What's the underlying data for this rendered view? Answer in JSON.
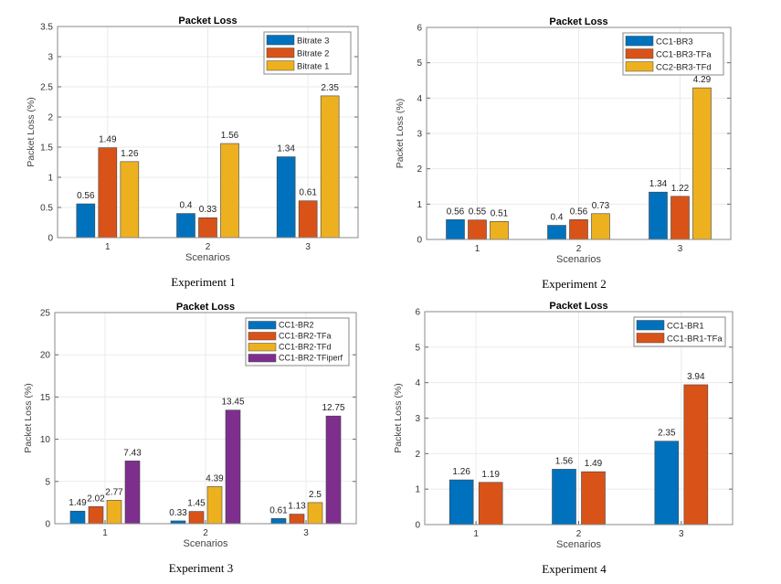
{
  "colors": [
    "#0072BD",
    "#D95319",
    "#EDB120",
    "#7E2F8E"
  ],
  "chart_data": [
    {
      "type": "bar",
      "title": "Packet Loss",
      "caption": "Experiment 1",
      "xlabel": "Scenarios",
      "ylabel": "Packet Loss (%)",
      "categories": [
        "1",
        "2",
        "3"
      ],
      "ylim": [
        0,
        3.5
      ],
      "yticks": [
        0,
        0.5,
        1,
        1.5,
        2,
        2.5,
        3,
        3.5
      ],
      "grid": true,
      "legend_position": "top-right",
      "series": [
        {
          "name": "Bitrate 3",
          "values": [
            0.56,
            0.4,
            1.34
          ],
          "labels": [
            "0.56",
            "0.4",
            "1.34"
          ]
        },
        {
          "name": "Bitrate 2",
          "values": [
            1.49,
            0.33,
            0.61
          ],
          "labels": [
            "1.49",
            "0.33",
            "0.61"
          ]
        },
        {
          "name": "Bitrate 1",
          "values": [
            1.26,
            1.56,
            2.35
          ],
          "labels": [
            "1.26",
            "1.56",
            "2.35"
          ]
        }
      ]
    },
    {
      "type": "bar",
      "title": "Packet Loss",
      "caption": "Experiment 2",
      "xlabel": "Scenarios",
      "ylabel": "Packet Loss (%)",
      "categories": [
        "1",
        "2",
        "3"
      ],
      "ylim": [
        0,
        6
      ],
      "yticks": [
        0,
        1,
        2,
        3,
        4,
        5,
        6
      ],
      "grid": true,
      "legend_position": "top-right",
      "series": [
        {
          "name": "CC1-BR3",
          "values": [
            0.56,
            0.4,
            1.34
          ],
          "labels": [
            "0.56",
            "0.4",
            "1.34"
          ]
        },
        {
          "name": "CC1-BR3-TFa",
          "values": [
            0.55,
            0.56,
            1.22
          ],
          "labels": [
            "0.55",
            "0.56",
            "1.22"
          ]
        },
        {
          "name": "CC2-BR3-TFd",
          "values": [
            0.51,
            0.73,
            4.29
          ],
          "labels": [
            "0.51",
            "0.73",
            "4.29"
          ]
        }
      ]
    },
    {
      "type": "bar",
      "title": "Packet Loss",
      "caption": "Experiment 3",
      "xlabel": "Scenarios",
      "ylabel": "Packet Loss (%)",
      "categories": [
        "1",
        "2",
        "3"
      ],
      "ylim": [
        0,
        25
      ],
      "yticks": [
        0,
        5,
        10,
        15,
        20,
        25
      ],
      "grid": true,
      "legend_position": "top-right",
      "series": [
        {
          "name": "CC1-BR2",
          "values": [
            1.49,
            0.33,
            0.61
          ],
          "labels": [
            "1.49",
            "0.33",
            "0.61"
          ]
        },
        {
          "name": "CC1-BR2-TFa",
          "values": [
            2.02,
            1.45,
            1.13
          ],
          "labels": [
            "2.02",
            "1.45",
            "1.13"
          ]
        },
        {
          "name": "CC1-BR2-TFd",
          "values": [
            2.77,
            4.39,
            2.5
          ],
          "labels": [
            "2.77",
            "4.39",
            "2.5"
          ]
        },
        {
          "name": "CC1-BR2-TFiperf",
          "values": [
            7.43,
            13.45,
            12.75
          ],
          "labels": [
            "7.43",
            "13.45",
            "12.75"
          ]
        }
      ]
    },
    {
      "type": "bar",
      "title": "Packet Loss",
      "caption": "Experiment 4",
      "xlabel": "Scenarios",
      "ylabel": "Packet Loss (%)",
      "categories": [
        "1",
        "2",
        "3"
      ],
      "ylim": [
        0,
        6
      ],
      "yticks": [
        0,
        1,
        2,
        3,
        4,
        5,
        6
      ],
      "grid": true,
      "legend_position": "top-right",
      "series": [
        {
          "name": "CC1-BR1",
          "values": [
            1.26,
            1.56,
            2.35
          ],
          "labels": [
            "1.26",
            "1.56",
            "2.35"
          ]
        },
        {
          "name": "CC1-BR1-TFa",
          "values": [
            1.19,
            1.49,
            3.94
          ],
          "labels": [
            "1.19",
            "1.49",
            "3.94"
          ]
        }
      ]
    }
  ]
}
